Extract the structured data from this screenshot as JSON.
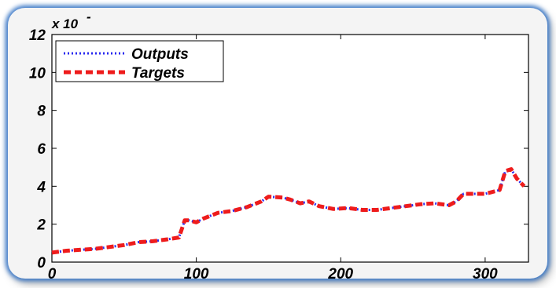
{
  "chart_data": {
    "type": "line",
    "title": "",
    "xlabel": "",
    "ylabel": "",
    "xlim": [
      0,
      330
    ],
    "ylim": [
      0,
      12
    ],
    "xticks": [
      0,
      100,
      200,
      300
    ],
    "yticks": [
      0,
      2,
      4,
      6,
      8,
      10,
      12
    ],
    "y_exponent_label": "x 10",
    "y_exponent_sup": "-",
    "grid": false,
    "legend_position": "top-left",
    "series": [
      {
        "name": "Outputs",
        "color": "#2a2af0",
        "style": "dotted",
        "x": [
          0,
          10,
          20,
          30,
          40,
          50,
          60,
          70,
          80,
          88,
          92,
          95,
          100,
          105,
          115,
          125,
          135,
          145,
          150,
          160,
          165,
          172,
          178,
          185,
          195,
          205,
          215,
          225,
          235,
          245,
          255,
          265,
          275,
          280,
          285,
          292,
          300,
          310,
          314,
          318,
          322,
          327
        ],
        "y": [
          0.5,
          0.6,
          0.65,
          0.7,
          0.8,
          0.9,
          1.05,
          1.1,
          1.2,
          1.3,
          2.2,
          2.2,
          2.1,
          2.3,
          2.6,
          2.7,
          2.9,
          3.2,
          3.45,
          3.4,
          3.3,
          3.1,
          3.2,
          2.95,
          2.8,
          2.85,
          2.75,
          2.75,
          2.85,
          2.95,
          3.05,
          3.1,
          3.0,
          3.2,
          3.6,
          3.6,
          3.6,
          3.8,
          4.8,
          4.9,
          4.4,
          4.0
        ]
      },
      {
        "name": "Targets",
        "color": "#ee1c1c",
        "style": "dashed",
        "x": [
          0,
          10,
          20,
          30,
          40,
          50,
          60,
          70,
          80,
          88,
          92,
          95,
          100,
          105,
          115,
          125,
          135,
          145,
          150,
          160,
          165,
          172,
          178,
          185,
          195,
          205,
          215,
          225,
          235,
          245,
          255,
          265,
          275,
          280,
          285,
          292,
          300,
          310,
          314,
          318,
          322,
          327
        ],
        "y": [
          0.5,
          0.6,
          0.65,
          0.7,
          0.8,
          0.9,
          1.05,
          1.1,
          1.2,
          1.3,
          2.2,
          2.2,
          2.1,
          2.3,
          2.6,
          2.7,
          2.9,
          3.2,
          3.45,
          3.4,
          3.3,
          3.1,
          3.2,
          2.95,
          2.8,
          2.85,
          2.75,
          2.75,
          2.85,
          2.95,
          3.05,
          3.1,
          3.0,
          3.2,
          3.6,
          3.6,
          3.6,
          3.8,
          4.8,
          4.9,
          4.4,
          4.0
        ]
      }
    ]
  }
}
